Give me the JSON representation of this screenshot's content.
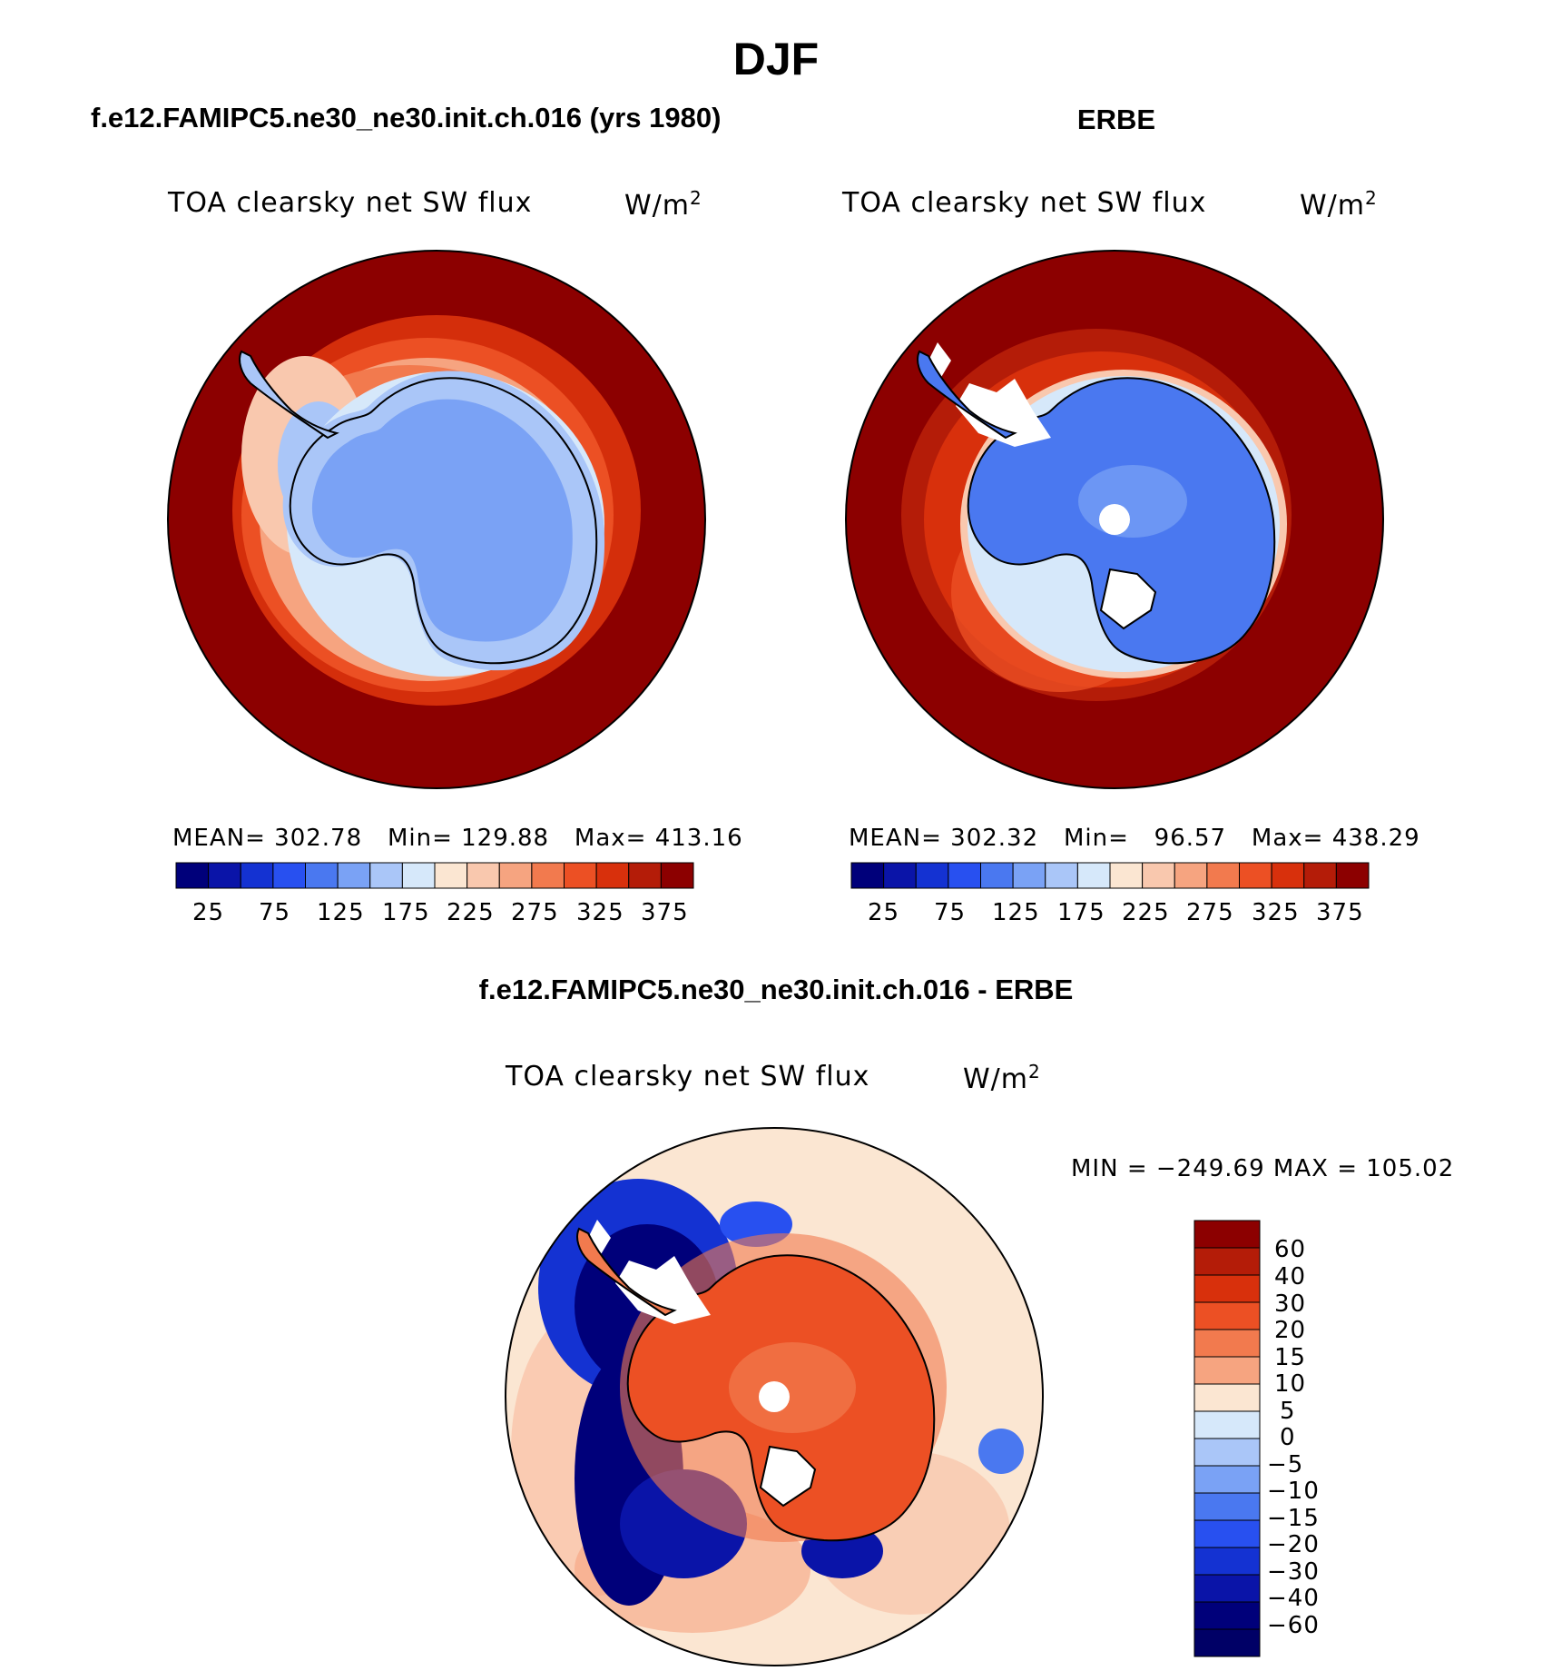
{
  "figure_title": "DJF",
  "panels": [
    {
      "id": "model",
      "header": "f.e12.FAMIPC5.ne30_ne30.init.ch.016 (yrs 1980)",
      "variable": "TOA clearsky net SW flux",
      "units_base": "W/m",
      "units_exp": "2",
      "stats": {
        "mean_label": "MEAN=",
        "mean": "302.78",
        "min_label": "Min=",
        "min": "129.88",
        "max_label": "Max=",
        "max": "413.16"
      }
    },
    {
      "id": "obs",
      "header": "ERBE",
      "variable": "TOA clearsky net SW flux",
      "units_base": "W/m",
      "units_exp": "2",
      "stats": {
        "mean_label": "MEAN=",
        "mean": "302.32",
        "min_label": "Min=",
        "min": "96.57",
        "max_label": "Max=",
        "max": "438.29"
      }
    },
    {
      "id": "diff",
      "header": "f.e12.FAMIPC5.ne30_ne30.init.ch.016 - ERBE",
      "variable": "TOA clearsky net SW flux",
      "units_base": "W/m",
      "units_exp": "2",
      "stats": {
        "min_label": "MIN =",
        "min": "−249.69",
        "max_label": "MAX =",
        "max": "105.02"
      }
    }
  ],
  "colorbar_abs": {
    "colors": [
      "#00007a",
      "#0a14a8",
      "#1432d2",
      "#2850f0",
      "#4a78f0",
      "#7aa2f5",
      "#aac6f8",
      "#d6e8fa",
      "#fbe6d2",
      "#f9c8ae",
      "#f6a480",
      "#f27a4e",
      "#ec5024",
      "#d8300c",
      "#b41c08",
      "#8c0000"
    ],
    "labels": [
      "25",
      "75",
      "125",
      "175",
      "225",
      "275",
      "325",
      "375"
    ]
  },
  "colorbar_diff": {
    "colors": [
      "#8c0000",
      "#b41c08",
      "#d8300c",
      "#ec5024",
      "#f27a4e",
      "#f6a480",
      "#fbe6d2",
      "#d6e8fa",
      "#aac6f8",
      "#7aa2f5",
      "#4a78f0",
      "#2850f0",
      "#1432d2",
      "#0a14a8",
      "#00007a"
    ],
    "labels": [
      "60",
      "40",
      "30",
      "20",
      "15",
      "10",
      "5",
      "0",
      "−5",
      "−10",
      "−15",
      "−20",
      "−30",
      "−40",
      "−60"
    ]
  }
}
